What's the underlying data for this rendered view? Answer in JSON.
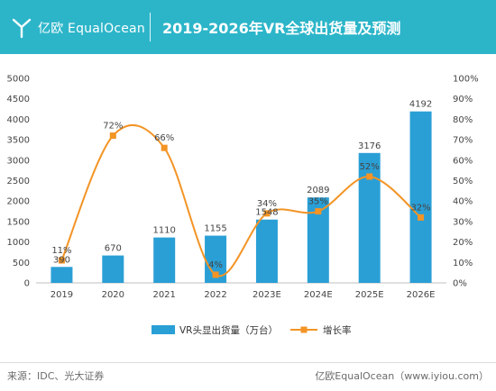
{
  "header": {
    "logo_text": "亿欧 EqualOcean",
    "title": "2019-2026年VR全球出货量及预测",
    "background": "#2cb5c9"
  },
  "footer": {
    "source": "来源：IDC、光大证券",
    "brand": "亿欧EqualOcean（www.iyiou.com）"
  },
  "chart_data": {
    "type": "bar",
    "categories": [
      "2019",
      "2020",
      "2021",
      "2022",
      "2023E",
      "2024E",
      "2025E",
      "2026E"
    ],
    "series": [
      {
        "name": "VR头显出货量（万台）",
        "type": "bar",
        "axis": "left",
        "color": "#2a9fd6",
        "values": [
          390,
          670,
          1110,
          1155,
          1548,
          2089,
          3176,
          4192
        ],
        "labels": [
          "390",
          "670",
          "1110",
          "1155",
          "1548",
          "2089",
          "3176",
          "4192"
        ]
      },
      {
        "name": "增长率",
        "type": "line",
        "axis": "right",
        "color": "#f39425",
        "values": [
          11,
          72,
          66,
          4,
          34,
          35,
          52,
          32
        ],
        "labels": [
          "11%",
          "72%",
          "66%",
          "4%",
          "34%",
          "35%",
          "52%",
          "32%"
        ]
      }
    ],
    "y_left": {
      "min": 0,
      "max": 5000,
      "ticks": [
        0,
        500,
        1000,
        1500,
        2000,
        2500,
        3000,
        3500,
        4000,
        4500,
        5000
      ]
    },
    "y_right": {
      "min": 0,
      "max": 100,
      "ticks": [
        "0%",
        "10%",
        "20%",
        "30%",
        "40%",
        "50%",
        "60%",
        "70%",
        "80%",
        "90%",
        "100%"
      ]
    },
    "grid": false,
    "legend_position": "bottom"
  }
}
